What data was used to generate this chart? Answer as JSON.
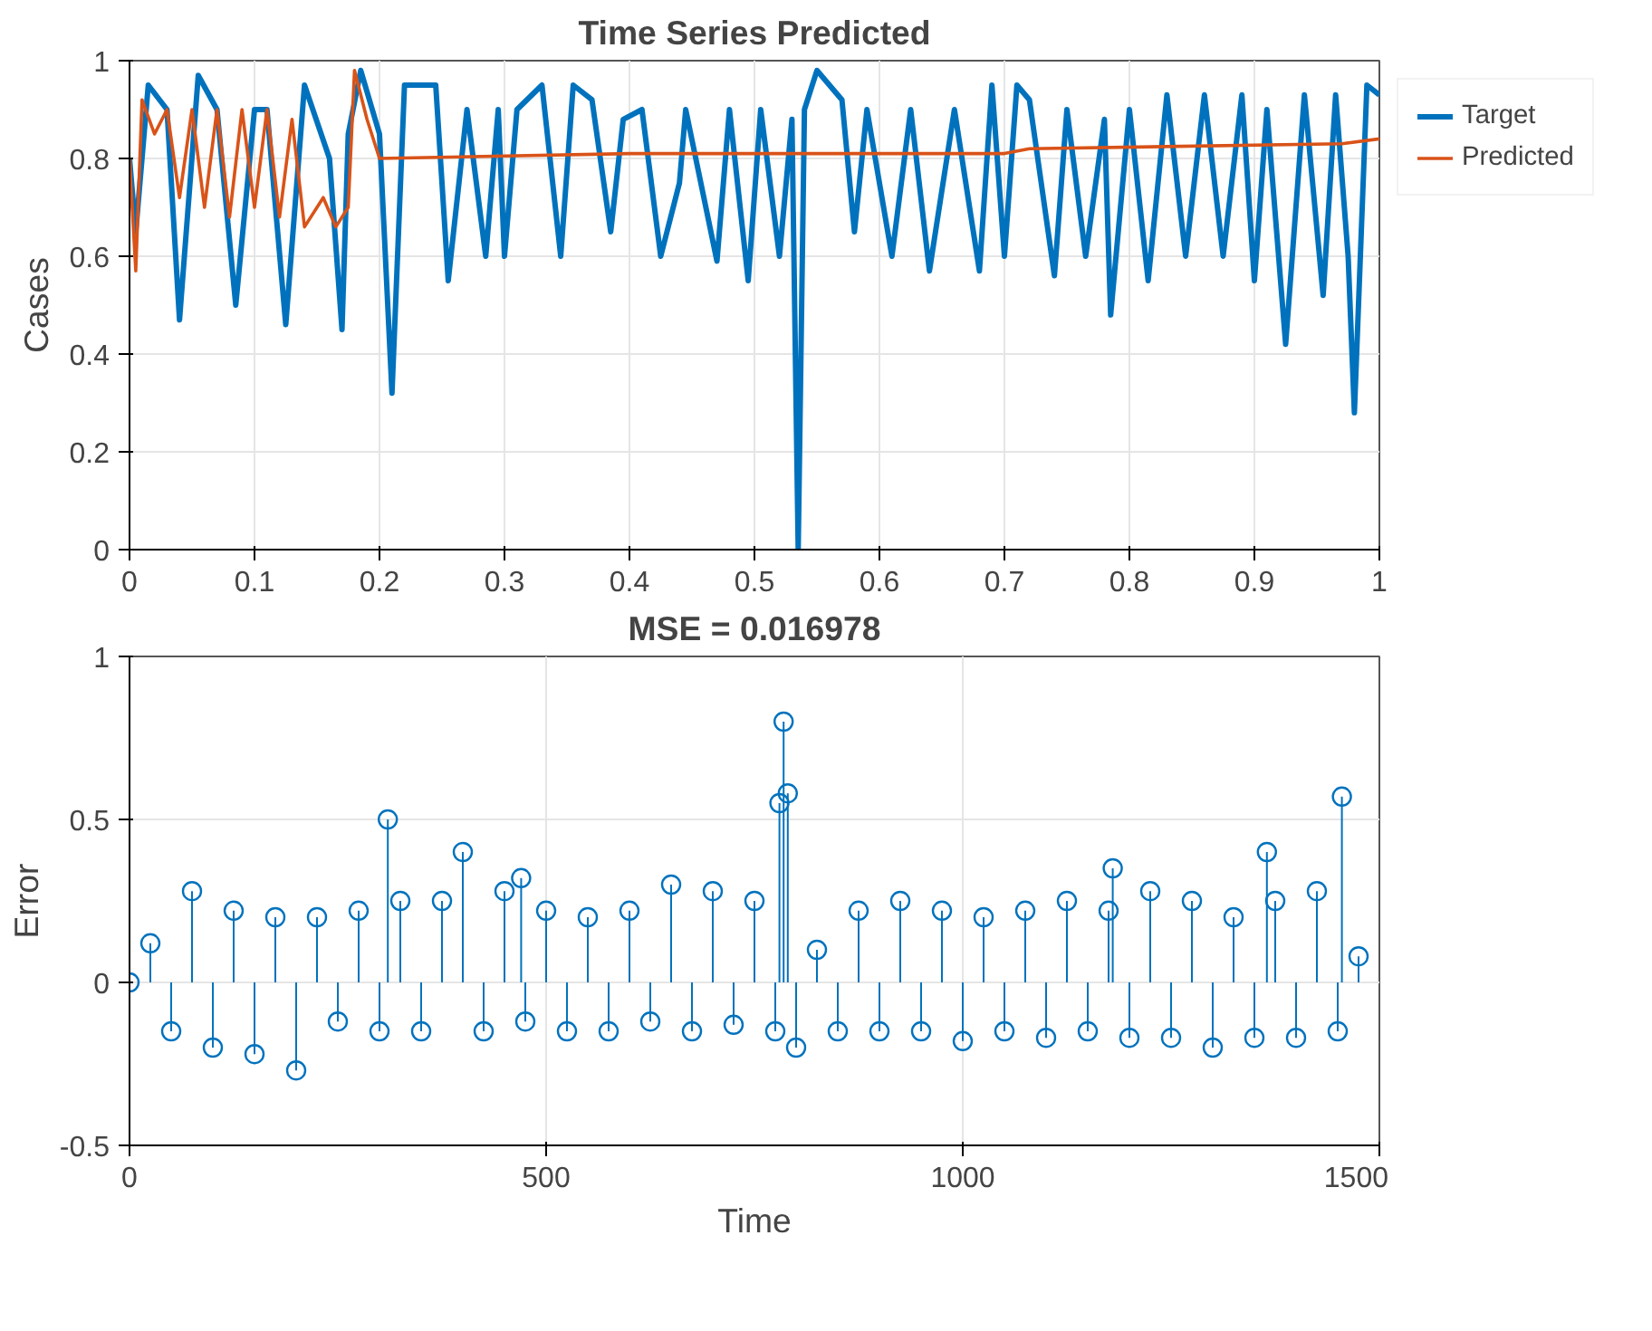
{
  "chart_data": [
    {
      "type": "line",
      "title": "Time Series Predicted",
      "ylabel": "Cases",
      "xlim": [
        0,
        1
      ],
      "ylim": [
        0,
        1
      ],
      "xticks": [
        0,
        0.1,
        0.2,
        0.3,
        0.4,
        0.5,
        0.6,
        0.7,
        0.8,
        0.9,
        1
      ],
      "yticks": [
        0,
        0.2,
        0.4,
        0.6,
        0.8,
        1
      ],
      "grid": true,
      "legend": "right",
      "line_style": "solid",
      "series": [
        {
          "name": "Target",
          "color": "#0072bd",
          "x": [
            0,
            0.005,
            0.01,
            0.015,
            0.03,
            0.04,
            0.055,
            0.07,
            0.085,
            0.1,
            0.11,
            0.125,
            0.14,
            0.16,
            0.17,
            0.175,
            0.185,
            0.2,
            0.21,
            0.22,
            0.245,
            0.255,
            0.27,
            0.285,
            0.295,
            0.3,
            0.31,
            0.33,
            0.345,
            0.355,
            0.37,
            0.385,
            0.395,
            0.41,
            0.425,
            0.44,
            0.445,
            0.47,
            0.48,
            0.495,
            0.505,
            0.52,
            0.53,
            0.535,
            0.54,
            0.55,
            0.57,
            0.58,
            0.59,
            0.61,
            0.625,
            0.64,
            0.66,
            0.68,
            0.69,
            0.7,
            0.71,
            0.72,
            0.74,
            0.75,
            0.765,
            0.78,
            0.785,
            0.8,
            0.815,
            0.83,
            0.845,
            0.86,
            0.875,
            0.89,
            0.9,
            0.91,
            0.925,
            0.94,
            0.955,
            0.965,
            0.975,
            0.98,
            0.99,
            1
          ],
          "values": [
            0.8,
            0.65,
            0.8,
            0.95,
            0.9,
            0.47,
            0.97,
            0.9,
            0.5,
            0.9,
            0.9,
            0.46,
            0.95,
            0.8,
            0.45,
            0.85,
            0.98,
            0.85,
            0.32,
            0.95,
            0.95,
            0.55,
            0.9,
            0.6,
            0.9,
            0.6,
            0.9,
            0.95,
            0.6,
            0.95,
            0.92,
            0.65,
            0.88,
            0.9,
            0.6,
            0.75,
            0.9,
            0.59,
            0.9,
            0.55,
            0.9,
            0.6,
            0.88,
            0,
            0.9,
            0.98,
            0.92,
            0.65,
            0.9,
            0.6,
            0.9,
            0.57,
            0.9,
            0.57,
            0.95,
            0.6,
            0.95,
            0.92,
            0.56,
            0.9,
            0.6,
            0.88,
            0.48,
            0.9,
            0.55,
            0.93,
            0.6,
            0.93,
            0.6,
            0.93,
            0.55,
            0.9,
            0.42,
            0.93,
            0.52,
            0.93,
            0.6,
            0.28,
            0.95,
            0.93
          ]
        },
        {
          "name": "Predicted",
          "color": "#d95319",
          "x": [
            0,
            0.005,
            0.01,
            0.02,
            0.03,
            0.04,
            0.05,
            0.06,
            0.07,
            0.08,
            0.09,
            0.1,
            0.11,
            0.12,
            0.13,
            0.14,
            0.155,
            0.165,
            0.175,
            0.18,
            0.19,
            0.2,
            0.4,
            0.7,
            0.72,
            0.97,
            1
          ],
          "values": [
            0.8,
            0.57,
            0.92,
            0.85,
            0.9,
            0.72,
            0.9,
            0.7,
            0.9,
            0.68,
            0.9,
            0.7,
            0.9,
            0.68,
            0.88,
            0.66,
            0.72,
            0.66,
            0.7,
            0.98,
            0.88,
            0.8,
            0.81,
            0.81,
            0.82,
            0.83,
            0.84
          ]
        }
      ]
    },
    {
      "type": "lollipop",
      "title": "MSE = 0.016978",
      "xlabel": "Time",
      "ylabel": "Error",
      "xlim": [
        0,
        1500
      ],
      "ylim": [
        -0.5,
        1
      ],
      "xticks": [
        0,
        500,
        1000,
        1500
      ],
      "yticks": [
        -0.5,
        0,
        0.5,
        1
      ],
      "grid": true,
      "marker": "circle",
      "series": [
        {
          "color": "#0072bd",
          "x": [
            0,
            25,
            50,
            75,
            100,
            125,
            150,
            175,
            200,
            225,
            250,
            275,
            300,
            310,
            325,
            350,
            375,
            400,
            425,
            450,
            470,
            475,
            500,
            525,
            550,
            575,
            600,
            625,
            650,
            675,
            700,
            725,
            750,
            775,
            780,
            785,
            790,
            800,
            825,
            850,
            875,
            900,
            925,
            950,
            975,
            1000,
            1025,
            1050,
            1075,
            1100,
            1125,
            1150,
            1175,
            1180,
            1200,
            1225,
            1250,
            1275,
            1300,
            1325,
            1350,
            1365,
            1375,
            1400,
            1425,
            1450,
            1455,
            1475
          ],
          "values": [
            0,
            0.12,
            -0.15,
            0.28,
            -0.2,
            0.22,
            -0.22,
            0.2,
            -0.27,
            0.2,
            -0.12,
            0.22,
            -0.15,
            0.5,
            0.25,
            -0.15,
            0.25,
            0.4,
            -0.15,
            0.28,
            0.32,
            -0.12,
            0.22,
            -0.15,
            0.2,
            -0.15,
            0.22,
            -0.12,
            0.3,
            -0.15,
            0.28,
            -0.13,
            0.25,
            -0.15,
            0.55,
            0.8,
            0.58,
            -0.2,
            0.1,
            -0.15,
            0.22,
            -0.15,
            0.25,
            -0.15,
            0.22,
            -0.18,
            0.2,
            -0.15,
            0.22,
            -0.17,
            0.25,
            -0.15,
            0.22,
            0.35,
            -0.17,
            0.28,
            -0.17,
            0.25,
            -0.2,
            0.2,
            -0.17,
            0.4,
            0.25,
            -0.17,
            0.28,
            -0.15,
            0.57,
            0.08
          ]
        }
      ]
    }
  ]
}
